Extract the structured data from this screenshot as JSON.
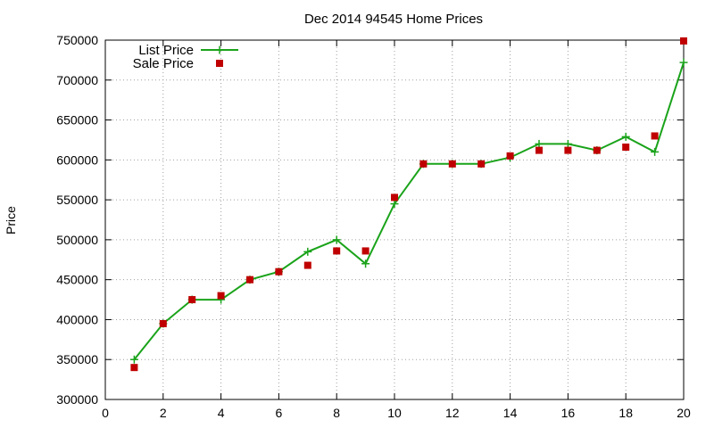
{
  "chart_data": {
    "type": "line",
    "title": "Dec 2014 94545 Home Prices",
    "xlabel": "",
    "ylabel": "Price",
    "xlim": [
      0,
      20
    ],
    "ylim": [
      300000,
      750000
    ],
    "x_ticks": [
      "0",
      "2",
      "4",
      "6",
      "8",
      "10",
      "12",
      "14",
      "16",
      "18",
      "20"
    ],
    "y_ticks": [
      "300000",
      "350000",
      "400000",
      "450000",
      "500000",
      "550000",
      "600000",
      "650000",
      "700000",
      "750000"
    ],
    "grid": true,
    "legend_position": "top-left",
    "series": [
      {
        "name": "List Price",
        "style": "line+cross",
        "color": "#1aa31a",
        "x": [
          1,
          2,
          3,
          4,
          5,
          6,
          7,
          8,
          9,
          10,
          11,
          12,
          13,
          14,
          15,
          16,
          17,
          18,
          19,
          20
        ],
        "y": [
          350000,
          395000,
          425000,
          425000,
          450000,
          460000,
          485000,
          500000,
          470000,
          545000,
          595000,
          595000,
          595000,
          603000,
          620000,
          620000,
          612000,
          629000,
          610000,
          722000
        ]
      },
      {
        "name": "Sale Price",
        "style": "square",
        "color": "#c00000",
        "x": [
          1,
          2,
          3,
          4,
          5,
          6,
          7,
          8,
          9,
          10,
          11,
          12,
          13,
          14,
          15,
          16,
          17,
          18,
          19,
          20
        ],
        "y": [
          340000,
          395000,
          425000,
          430000,
          450000,
          460000,
          468000,
          486000,
          486000,
          553000,
          595000,
          595000,
          595000,
          605000,
          612000,
          612000,
          612000,
          616000,
          630000,
          749000
        ]
      }
    ]
  }
}
